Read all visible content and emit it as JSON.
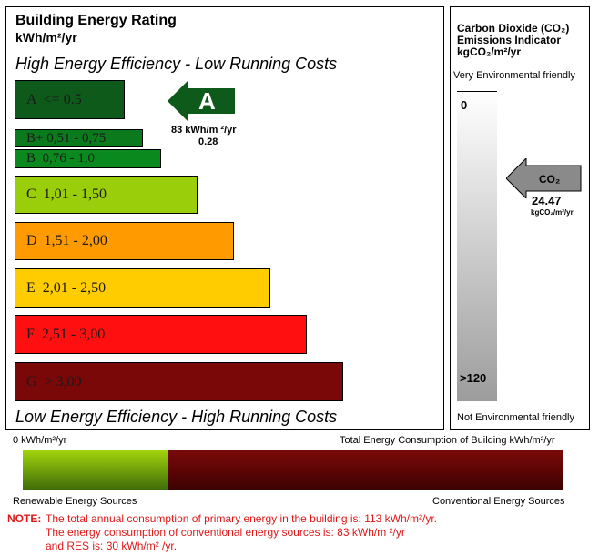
{
  "rating_panel": {
    "title": "Building Energy Rating",
    "unit": "kWh/m²/yr",
    "top_caption": "High Energy Efficiency - Low Running Costs",
    "bottom_caption": "Low Energy Efficiency - High Running Costs",
    "bands": [
      {
        "label": "A  <= 0.5",
        "color": "#0e5a1a"
      },
      {
        "label": "B+ 0,51 - 0,75",
        "color": "#0a7a1c"
      },
      {
        "label": "B  0,76 - 1,0",
        "color": "#0a8a1e"
      },
      {
        "label": "C  1,01 - 1,50",
        "color": "#9acd0a"
      },
      {
        "label": "D  1,51 - 2,00",
        "color": "#ff9a00"
      },
      {
        "label": "E  2,01 - 2,50",
        "color": "#ffcc00"
      },
      {
        "label": "F  2,51 - 3,00",
        "color": "#ff0f0f"
      },
      {
        "label": "G  > 3,00",
        "color": "#7a0808"
      }
    ],
    "indicator": {
      "letter": "A",
      "value_line": "83 kWh/m ²/yr",
      "ratio": "0.28",
      "color": "#0e5a1a"
    }
  },
  "co2_panel": {
    "title_line1": "Carbon Dioxide (CO₂)",
    "title_line2": "Emissions Indicator",
    "unit": "kgCO₂/m²/yr",
    "top_caption": "Very Environmental friendly",
    "bottom_caption": "Not Environmental friendly",
    "scale_min": "0",
    "scale_max": ">120",
    "indicator": {
      "label": "CO₂",
      "value": "24.47",
      "unit": "kgCO₂/m²/yr"
    }
  },
  "consumption_bar": {
    "left_label": "0 kWh/m²/yr",
    "right_label": "Total Energy Consumption of Building kWh/m²/yr",
    "renewable_label": "Renewable Energy Sources",
    "conventional_label": "Conventional Energy Sources",
    "renewable_fraction": 0.27
  },
  "note": {
    "prefix": "NOTE:",
    "line1": "The total annual consumption of primary energy in the building is: 113 kWh/m²/yr.",
    "line2": "The energy consumption of conventional energy sources is:  83  kWh/m ²/yr",
    "line3": "and RES is: 30 kWh/m² /yr."
  }
}
